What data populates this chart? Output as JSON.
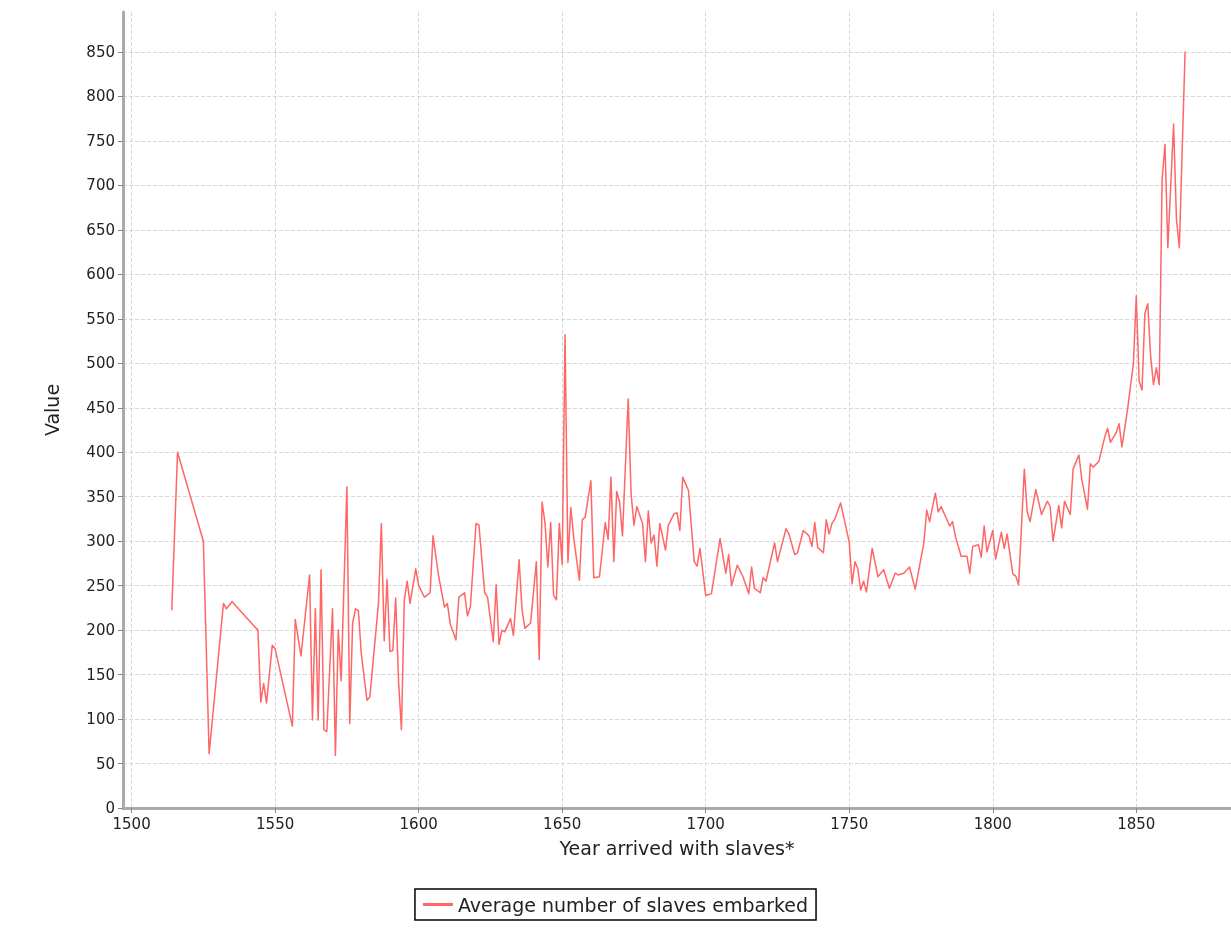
{
  "chart_data": {
    "type": "line",
    "xlabel": "Year arrived with slaves*",
    "ylabel": "Value",
    "xlim": [
      1497,
      1883
    ],
    "ylim": [
      0,
      895
    ],
    "xticks": [
      1500,
      1550,
      1600,
      1650,
      1700,
      1750,
      1800,
      1850
    ],
    "yticks": [
      0,
      50,
      100,
      150,
      200,
      250,
      300,
      350,
      400,
      450,
      500,
      550,
      600,
      650,
      700,
      750,
      800,
      850
    ],
    "grid": true,
    "legend": "bottom",
    "marker": "none",
    "line_style": "solid",
    "series": [
      {
        "name": "Average number of slaves embarked",
        "color": "#ff6666",
        "x": [
          1514,
          1516,
          1525,
          1527,
          1532,
          1533,
          1535,
          1544,
          1545,
          1546,
          1547,
          1549,
          1550,
          1556,
          1557,
          1559,
          1562,
          1563,
          1564,
          1565,
          1566,
          1567,
          1568,
          1570,
          1571,
          1572,
          1573,
          1575,
          1576,
          1577,
          1578,
          1579,
          1580,
          1582,
          1583,
          1586,
          1587,
          1588,
          1589,
          1590,
          1591,
          1592,
          1593,
          1594,
          1595,
          1596,
          1597,
          1599,
          1600,
          1602,
          1604,
          1605,
          1607,
          1609,
          1610,
          1611,
          1613,
          1614,
          1616,
          1617,
          1618,
          1620,
          1621,
          1623,
          1624,
          1626,
          1627,
          1628,
          1629,
          1630,
          1632,
          1633,
          1635,
          1636,
          1637,
          1639,
          1641,
          1642,
          1643,
          1644,
          1645,
          1646,
          1647,
          1648,
          1649,
          1650,
          1651,
          1652,
          1653,
          1654,
          1656,
          1657,
          1658,
          1660,
          1661,
          1663,
          1665,
          1666,
          1667,
          1668,
          1669,
          1670,
          1671,
          1673,
          1674,
          1675,
          1676,
          1678,
          1679,
          1680,
          1681,
          1682,
          1683,
          1684,
          1686,
          1687,
          1689,
          1690,
          1691,
          1692,
          1694,
          1696,
          1697,
          1698,
          1700,
          1702,
          1705,
          1707,
          1708,
          1709,
          1711,
          1713,
          1715,
          1716,
          1717,
          1719,
          1720,
          1721,
          1724,
          1725,
          1728,
          1729,
          1731,
          1732,
          1734,
          1736,
          1737,
          1738,
          1739,
          1741,
          1742,
          1743,
          1744,
          1745,
          1747,
          1750,
          1751,
          1752,
          1753,
          1754,
          1755,
          1756,
          1758,
          1760,
          1762,
          1764,
          1766,
          1767,
          1769,
          1771,
          1773,
          1776,
          1777,
          1778,
          1780,
          1781,
          1782,
          1785,
          1786,
          1787,
          1789,
          1791,
          1792,
          1793,
          1795,
          1796,
          1797,
          1798,
          1800,
          1801,
          1803,
          1804,
          1805,
          1807,
          1808,
          1809,
          1811,
          1812,
          1813,
          1815,
          1817,
          1819,
          1820,
          1821,
          1823,
          1824,
          1825,
          1827,
          1828,
          1830,
          1831,
          1833,
          1834,
          1835,
          1837,
          1839,
          1840,
          1841,
          1843,
          1844,
          1845,
          1847,
          1849,
          1850,
          1851,
          1852,
          1853,
          1854,
          1855,
          1856,
          1857,
          1858,
          1859,
          1860,
          1861,
          1863,
          1864,
          1865,
          1867
        ],
        "values": [
          223,
          400,
          300,
          61,
          230,
          224,
          232,
          200,
          119,
          140,
          118,
          183,
          179,
          92,
          212,
          171,
          262,
          99,
          224,
          99,
          268,
          88,
          86,
          224,
          59,
          200,
          143,
          361,
          95,
          208,
          224,
          222,
          174,
          121,
          125,
          230,
          320,
          188,
          257,
          176,
          177,
          236,
          142,
          88,
          234,
          255,
          230,
          269,
          250,
          237,
          242,
          306,
          260,
          226,
          230,
          207,
          189,
          237,
          242,
          216,
          226,
          320,
          318,
          242,
          237,
          187,
          251,
          184,
          200,
          198,
          213,
          194,
          279,
          224,
          202,
          208,
          277,
          167,
          344,
          321,
          271,
          321,
          239,
          234,
          320,
          274,
          532,
          276,
          338,
          304,
          256,
          324,
          327,
          368,
          259,
          260,
          321,
          302,
          372,
          277,
          356,
          344,
          306,
          460,
          354,
          318,
          339,
          320,
          277,
          334,
          298,
          307,
          272,
          320,
          290,
          318,
          331,
          332,
          312,
          372,
          357,
          277,
          272,
          292,
          239,
          241,
          303,
          264,
          285,
          250,
          273,
          260,
          241,
          271,
          247,
          242,
          259,
          255,
          298,
          277,
          314,
          308,
          285,
          287,
          312,
          306,
          294,
          321,
          293,
          287,
          324,
          308,
          320,
          325,
          343,
          299,
          252,
          277,
          269,
          245,
          255,
          243,
          292,
          260,
          268,
          247,
          264,
          262,
          264,
          271,
          246,
          298,
          335,
          322,
          354,
          333,
          339,
          317,
          322,
          305,
          283,
          283,
          264,
          294,
          296,
          282,
          317,
          288,
          312,
          280,
          310,
          292,
          308,
          263,
          261,
          251,
          381,
          333,
          322,
          358,
          330,
          345,
          339,
          300,
          340,
          315,
          345,
          330,
          381,
          397,
          370,
          336,
          387,
          383,
          390,
          417,
          427,
          411,
          422,
          432,
          406,
          449,
          500,
          576,
          480,
          470,
          556,
          567,
          508,
          476,
          495,
          476,
          707,
          746,
          630,
          769,
          662,
          630,
          850
        ]
      }
    ]
  }
}
